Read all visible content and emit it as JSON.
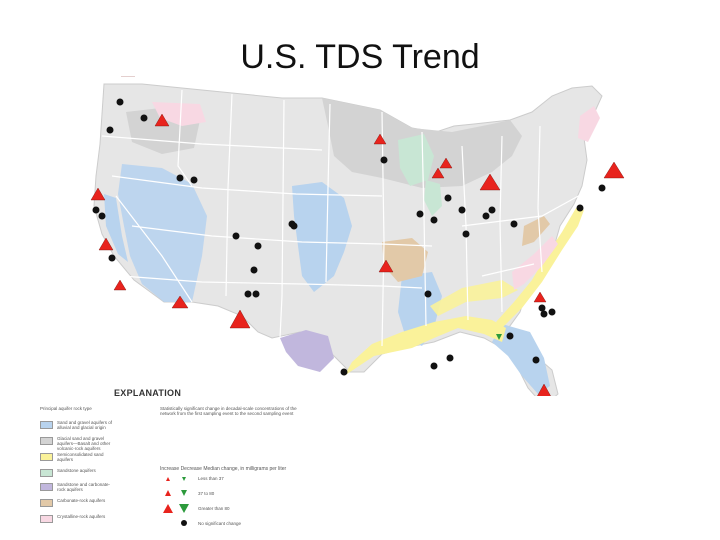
{
  "title": "U.S. TDS Trend",
  "legend": {
    "title": "EXPLANATION",
    "aquifer_header": "Principal aquifer rock type",
    "aquifer_types": [
      {
        "label": "Sand and gravel aquifers of alluvial and glacial origin",
        "color": "#b8d3ee"
      },
      {
        "label": "Glacial sand and gravel aquifers—Basalt and other volcanic-rock aquifers",
        "color": "#d3d3d3"
      },
      {
        "label": "Semiconsolidated sand aquifers",
        "color": "#faf29a"
      },
      {
        "label": "Sandstone aquifers",
        "color": "#c8e6d4"
      },
      {
        "label": "Sandstone and carbonate-rock aquifers",
        "color": "#c1b7dd"
      },
      {
        "label": "Carbonate-rock aquifers",
        "color": "#e2c9a8"
      },
      {
        "label": "Crystalline-rock aquifers",
        "color": "#f8d8e3"
      }
    ],
    "trend_text": "Statistically significant change in decadal-scale concentrations of the network from the first sampling event to the second sampling event",
    "trend_header": "Increase  Decrease  Median change, in milligrams per liter",
    "trend_rows": [
      {
        "label": "Less than 37"
      },
      {
        "label": "37 to 80"
      },
      {
        "label": "Greater than 80"
      },
      {
        "label": "No significant change"
      }
    ]
  },
  "colors": {
    "increase": "#e8231d",
    "decrease": "#2c9a3c",
    "no_change": "#111111",
    "state_border": "#ffffff",
    "land": "#e6e6e6"
  }
}
